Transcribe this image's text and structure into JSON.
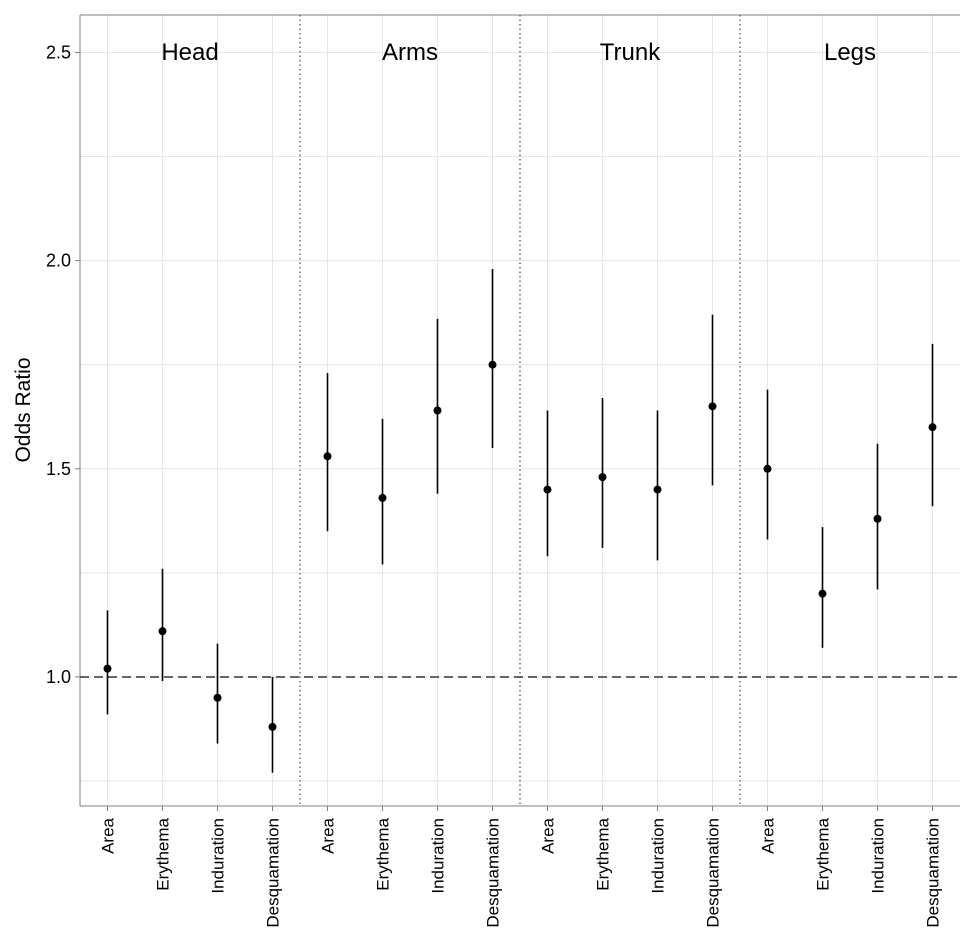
{
  "chart_data": {
    "type": "scatter",
    "title": "",
    "ylabel": "Odds Ratio",
    "xlabel": "",
    "ylim": [
      0.69,
      2.59
    ],
    "yticks": [
      1.0,
      1.5,
      2.0,
      2.5
    ],
    "ytick_labels": [
      "1.0",
      "1.5",
      "2.0",
      "2.5"
    ],
    "reference_line": 1.0,
    "grid": true,
    "error_bars": true,
    "categories": [
      "Area",
      "Erythema",
      "Induration",
      "Desquamation"
    ],
    "panels": [
      {
        "name": "Head",
        "points": [
          {
            "category": "Area",
            "or": 1.02,
            "lower": 0.91,
            "upper": 1.16
          },
          {
            "category": "Erythema",
            "or": 1.11,
            "lower": 0.99,
            "upper": 1.26
          },
          {
            "category": "Induration",
            "or": 0.95,
            "lower": 0.84,
            "upper": 1.08
          },
          {
            "category": "Desquamation",
            "or": 0.88,
            "lower": 0.77,
            "upper": 1.0
          }
        ]
      },
      {
        "name": "Arms",
        "points": [
          {
            "category": "Area",
            "or": 1.53,
            "lower": 1.35,
            "upper": 1.73
          },
          {
            "category": "Erythema",
            "or": 1.43,
            "lower": 1.27,
            "upper": 1.62
          },
          {
            "category": "Induration",
            "or": 1.64,
            "lower": 1.44,
            "upper": 1.86
          },
          {
            "category": "Desquamation",
            "or": 1.75,
            "lower": 1.55,
            "upper": 1.98
          }
        ]
      },
      {
        "name": "Trunk",
        "points": [
          {
            "category": "Area",
            "or": 1.45,
            "lower": 1.29,
            "upper": 1.64
          },
          {
            "category": "Erythema",
            "or": 1.48,
            "lower": 1.31,
            "upper": 1.67
          },
          {
            "category": "Induration",
            "or": 1.45,
            "lower": 1.28,
            "upper": 1.64
          },
          {
            "category": "Desquamation",
            "or": 1.65,
            "lower": 1.46,
            "upper": 1.87
          }
        ]
      },
      {
        "name": "Legs",
        "points": [
          {
            "category": "Area",
            "or": 1.5,
            "lower": 1.33,
            "upper": 1.69
          },
          {
            "category": "Erythema",
            "or": 1.2,
            "lower": 1.07,
            "upper": 1.36
          },
          {
            "category": "Induration",
            "or": 1.38,
            "lower": 1.21,
            "upper": 1.56
          },
          {
            "category": "Desquamation",
            "or": 1.6,
            "lower": 1.41,
            "upper": 1.8
          }
        ]
      }
    ],
    "colors": {
      "point": "#000000",
      "errorbar": "#000000",
      "grid": "#e6e6e6",
      "panel_border": "#7f7f7f",
      "separator": "#555555",
      "reference_line": "#333333"
    }
  }
}
